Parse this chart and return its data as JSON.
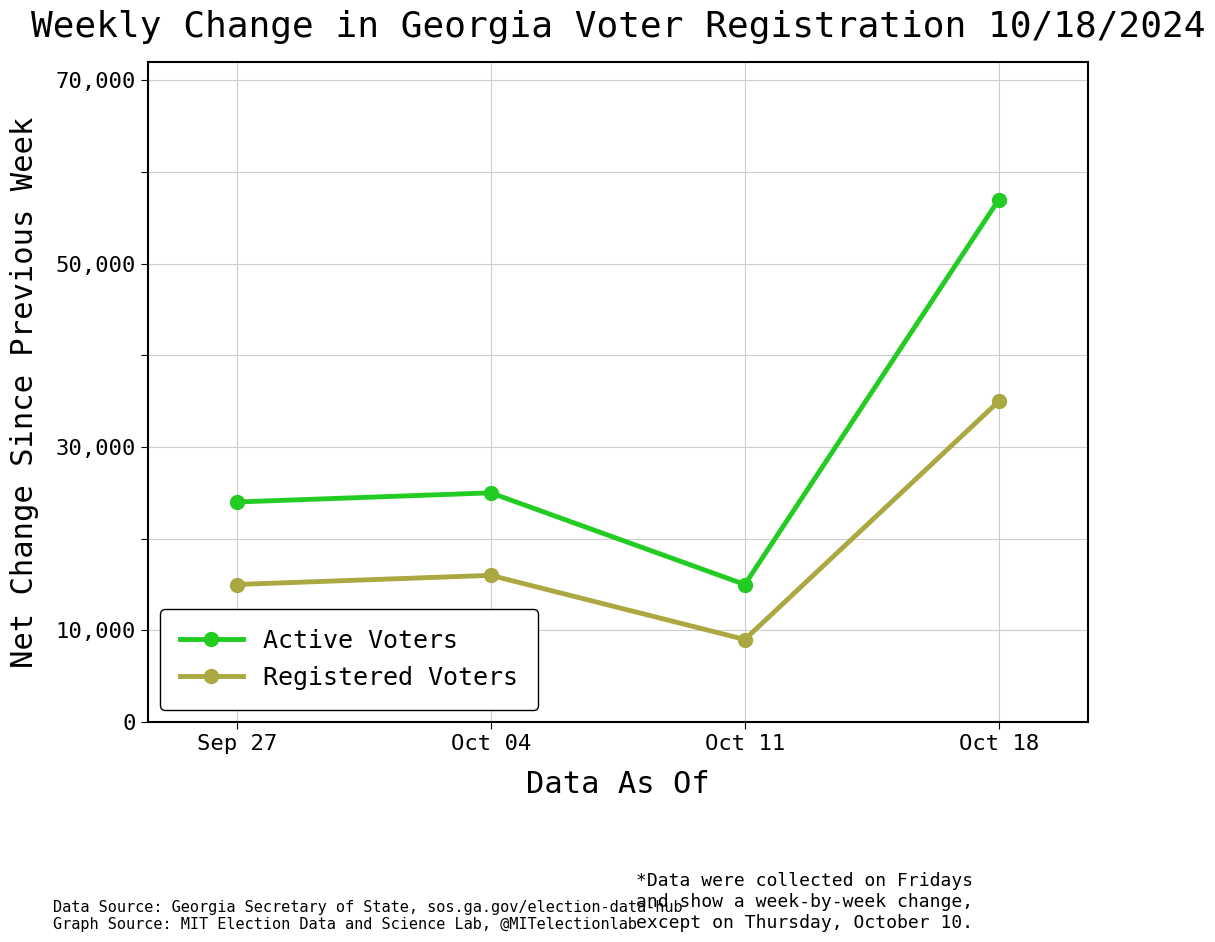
{
  "title": "Weekly Change in Georgia Voter Registration 10/18/2024",
  "xlabel": "Data As Of",
  "ylabel": "Net Change Since Previous Week",
  "x_labels": [
    "Sep 27",
    "Oct 04",
    "Oct 11",
    "Oct 18"
  ],
  "x_positions": [
    0,
    1,
    2,
    3
  ],
  "active_voters": [
    24000,
    25000,
    15000,
    57000
  ],
  "registered_voters": [
    15000,
    16000,
    9000,
    35000
  ],
  "active_color": "#22cc22",
  "registered_color": "#aaa840",
  "ylim": [
    0,
    72000
  ],
  "ytick_positions": [
    0,
    10000,
    20000,
    30000,
    40000,
    50000,
    60000,
    70000
  ],
  "ytick_labels": [
    "0",
    "10,000",
    "",
    "30,000",
    "",
    "50,000",
    "",
    "70,000"
  ],
  "legend_labels": [
    "Active Voters",
    "Registered Voters"
  ],
  "source_text": "Data Source: Georgia Secretary of State, sos.ga.gov/election-data-hub\nGraph Source: MIT Election Data and Science Lab, @MITelectionlab",
  "note_text": "*Data were collected on Fridays\nand show a week-by-week change,\nexcept on Thursday, October 10.",
  "title_fontsize": 26,
  "axis_label_fontsize": 22,
  "tick_fontsize": 16,
  "legend_fontsize": 18,
  "source_fontsize": 11,
  "note_fontsize": 13,
  "linewidth": 3.5,
  "markersize": 10,
  "background_color": "#ffffff",
  "plot_background": "#ffffff",
  "grid_color": "#cccccc"
}
